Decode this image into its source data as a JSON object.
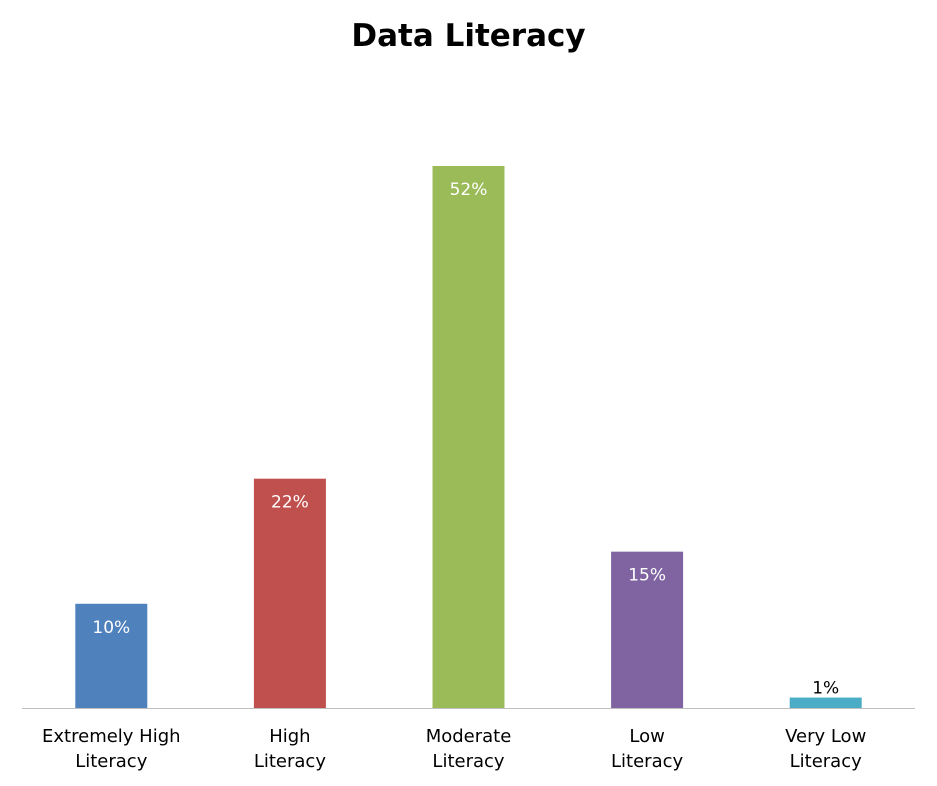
{
  "chart_data": {
    "type": "bar",
    "title": "Data Literacy",
    "categories": [
      [
        "Extremely High",
        "Literacy"
      ],
      [
        "High",
        "Literacy"
      ],
      [
        "Moderate",
        "Literacy"
      ],
      [
        "Low",
        "Literacy"
      ],
      [
        "Very Low",
        "Literacy"
      ]
    ],
    "values": [
      10,
      22,
      52,
      15,
      1
    ],
    "value_labels": [
      "10%",
      "22%",
      "52%",
      "15%",
      "1%"
    ],
    "ylim": [
      0,
      52
    ],
    "grid": false,
    "legend": "none",
    "colors": [
      "#4F81BD",
      "#C0504D",
      "#9BBB59",
      "#8064A2",
      "#4BACC6"
    ],
    "label_colors": [
      "#FFFFFF",
      "#FFFFFF",
      "#FFFFFF",
      "#FFFFFF",
      "#000000"
    ],
    "axis_color": "#BFBFBF"
  }
}
